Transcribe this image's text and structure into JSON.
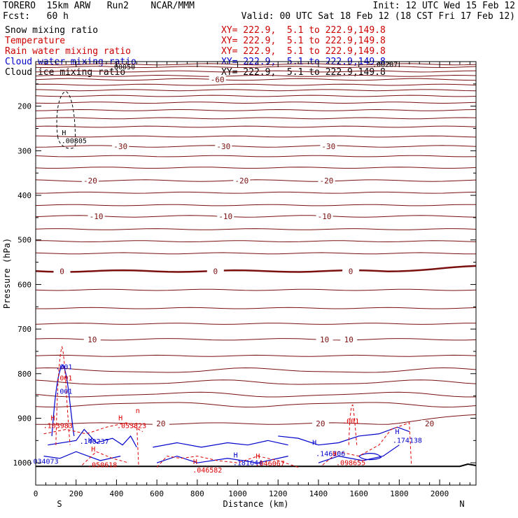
{
  "header": {
    "model": "TORERO  15km ARW   Run2    NCAR/MMM",
    "init": "Init: 12 UTC Wed 15 Feb 12",
    "fcst": "Fcst:   60 h",
    "valid": "Valid: 00 UTC Sat 18 Feb 12 (18 CST Fri 17 Feb 12)"
  },
  "fields": [
    {
      "name": "Snow mixing ratio",
      "xy": "XY= 222.9,  5.1 to 222.9,149.8",
      "color": "#000000",
      "xy_color": "#cc0000"
    },
    {
      "name": "Temperature",
      "xy": "XY= 222.9,  5.1 to 222.9,149.8",
      "color": "#cc0000",
      "xy_color": "#cc0000"
    },
    {
      "name": "Rain water mixing ratio",
      "xy": "XY= 222.9,  5.1 to 222.9,149.8",
      "color": "#cc0000",
      "xy_color": "#cc0000"
    },
    {
      "name": "Cloud water mixing ratio",
      "xy": "XY= 222.9,  5.1 to 222.9,149.8",
      "color": "#0000cc",
      "xy_color": "#0000cc"
    },
    {
      "name": "Cloud ice mixing ratio",
      "xy": "XY= 222.9,  5.1 to 222.9,149.8",
      "color": "#000000",
      "xy_color": "#000000"
    }
  ],
  "colors": {
    "temp": "#7a1010",
    "rain": "#dd0000",
    "cloud": "#0000cc",
    "ice": "#000000",
    "axis": "#000000"
  },
  "chart_data": {
    "type": "cross-section contour",
    "xlabel": "Distance (km)",
    "ylabel": "Pressure (hPa)",
    "xlim": [
      0,
      2180
    ],
    "ylim": [
      1050,
      100
    ],
    "x_ticks": [
      0,
      200,
      400,
      600,
      800,
      1000,
      1200,
      1400,
      1600,
      1800,
      2000
    ],
    "y_ticks": [
      200,
      300,
      400,
      500,
      600,
      700,
      800,
      900,
      1000
    ],
    "left_end_label": "S",
    "right_end_label": "N",
    "temperature_isotherms": [
      {
        "value": -60,
        "p": [
          140,
          140
        ],
        "labels": [
          {
            "x": 900,
            "t": "-60"
          }
        ]
      },
      {
        "value": -30,
        "p": [
          290,
          290
        ],
        "labels": [
          {
            "x": 420,
            "t": "-30"
          },
          {
            "x": 930,
            "t": "-30"
          },
          {
            "x": 1450,
            "t": "-30"
          }
        ]
      },
      {
        "value": -20,
        "p": [
          367,
          367
        ],
        "labels": [
          {
            "x": 270,
            "t": "-20"
          },
          {
            "x": 1020,
            "t": "-20"
          },
          {
            "x": 1440,
            "t": "-20"
          }
        ]
      },
      {
        "value": -10,
        "p": [
          447,
          447
        ],
        "labels": [
          {
            "x": 300,
            "t": "-10"
          },
          {
            "x": 940,
            "t": "-10"
          },
          {
            "x": 1430,
            "t": "-10"
          }
        ]
      },
      {
        "value": 0,
        "p": [
          570,
          560
        ],
        "labels": [
          {
            "x": 130,
            "t": "0"
          },
          {
            "x": 890,
            "t": "0"
          },
          {
            "x": 1560,
            "t": "0"
          }
        ]
      },
      {
        "value": 10,
        "p": [
          723,
          723
        ],
        "labels": [
          {
            "x": 280,
            "t": "10"
          },
          {
            "x": 1430,
            "t": "10"
          },
          {
            "x": 1550,
            "t": "10"
          }
        ]
      },
      {
        "value": 20,
        "p": [
          912,
          892
        ],
        "labels": [
          {
            "x": 620,
            "t": "20"
          },
          {
            "x": 1410,
            "t": "20"
          },
          {
            "x": 1950,
            "t": "20"
          }
        ]
      }
    ],
    "cloud_ice_labels": [
      {
        "x": 140,
        "p": 265,
        "t": "H"
      },
      {
        "x": 190,
        "p": 283,
        "t": ".00805"
      },
      {
        "x": 430,
        "p": 117,
        "t": ".00050"
      },
      {
        "x": 1730,
        "p": 112,
        "t": ".00287"
      }
    ],
    "cloud_water_labels": [
      {
        "x": 140,
        "p": 790,
        "t": ".001"
      },
      {
        "x": 140,
        "p": 845,
        "t": ".001"
      },
      {
        "x": 40,
        "p": 1002,
        "t": ".034073"
      },
      {
        "x": 270,
        "p": 955,
        "t": "H"
      },
      {
        "x": 290,
        "p": 957,
        "t": ".140237"
      },
      {
        "x": 990,
        "p": 988,
        "t": "H"
      },
      {
        "x": 1050,
        "p": 1005,
        "t": ".181644"
      },
      {
        "x": 1380,
        "p": 960,
        "t": "H"
      },
      {
        "x": 1460,
        "p": 985,
        "t": ".146106"
      },
      {
        "x": 1790,
        "p": 935,
        "t": "H"
      },
      {
        "x": 1840,
        "p": 955,
        "t": ".174138"
      }
    ],
    "rain_labels": [
      {
        "x": 140,
        "p": 815,
        "t": ".001"
      },
      {
        "x": 85,
        "p": 905,
        "t": "H"
      },
      {
        "x": 110,
        "p": 922,
        "t": ".103983"
      },
      {
        "x": 420,
        "p": 905,
        "t": "H"
      },
      {
        "x": 475,
        "p": 922,
        "t": ".053823"
      },
      {
        "x": 505,
        "p": 888,
        "t": "n"
      },
      {
        "x": 285,
        "p": 975,
        "t": "H"
      },
      {
        "x": 330,
        "p": 1010,
        "t": ".050618"
      },
      {
        "x": 790,
        "p": 1003,
        "t": "H"
      },
      {
        "x": 850,
        "p": 1022,
        "t": ".046582"
      },
      {
        "x": 1100,
        "p": 990,
        "t": "H"
      },
      {
        "x": 1160,
        "p": 1007,
        "t": ".046067"
      },
      {
        "x": 1560,
        "p": 912,
        "t": ".001"
      },
      {
        "x": 1480,
        "p": 985,
        "t": "H"
      },
      {
        "x": 1560,
        "p": 1005,
        "t": ".098655"
      }
    ]
  }
}
